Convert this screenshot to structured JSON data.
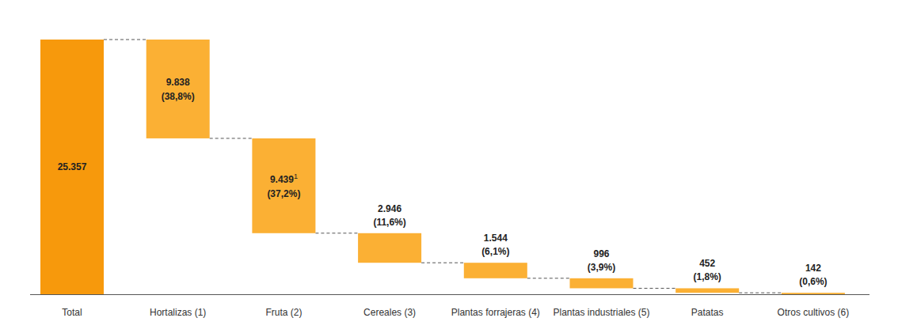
{
  "chart_data": {
    "type": "waterfall",
    "categories": [
      "Total",
      "Hortalizas (1)",
      "Fruta (2)",
      "Cereales (3)",
      "Plantas forrajeras (4)",
      "Plantas industriales (5)",
      "Patatas",
      "Otros cultivos (6)"
    ],
    "values": [
      25357,
      9838,
      9439,
      2946,
      1544,
      996,
      452,
      142
    ],
    "value_labels": [
      "25.357",
      "9.838",
      "9.439",
      "2.946",
      "1.544",
      "996",
      "452",
      "142"
    ],
    "percentages": [
      null,
      38.8,
      37.2,
      11.6,
      6.1,
      3.9,
      1.8,
      0.6
    ],
    "percentage_labels": [
      null,
      "(38,8%)",
      "(37,2%)",
      "(11,6%)",
      "(6,1%)",
      "(3,9%)",
      "(1,8%)",
      "(0,6%)"
    ],
    "footnote_marks": [
      null,
      null,
      "1",
      null,
      null,
      null,
      null,
      null
    ],
    "colors": [
      "#f7990c",
      "#fbb034",
      "#fbb034",
      "#fbb034",
      "#fbb034",
      "#fbb034",
      "#fbb034",
      "#fbb034"
    ],
    "ylim": [
      0,
      25357
    ],
    "data_labels": true,
    "tick_labels": false,
    "grid": false
  }
}
